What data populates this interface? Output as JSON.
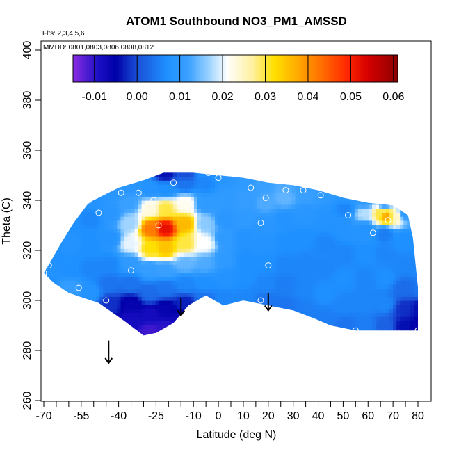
{
  "chart_data": {
    "type": "heatmap",
    "title": "ATOM1 Southbound NO3_PM1_AMSSD",
    "subtitle_flights": "Flts: 2,3,4,5,6",
    "subtitle_dates": "MMDD: 0801,0803,0806,0808,0812",
    "xlabel": "Latitude (deg N)",
    "ylabel": "Theta (C)",
    "xlim": [
      -70,
      80
    ],
    "ylim": [
      260,
      400
    ],
    "x_ticks": [
      -70,
      -55,
      -40,
      -25,
      -10,
      0,
      10,
      20,
      30,
      40,
      50,
      60,
      70,
      80
    ],
    "x_tick_labels": [
      "-70",
      "-55",
      "-40",
      "-25",
      "-10",
      "0",
      "10",
      "20",
      "30",
      "40",
      "50",
      "60",
      "70",
      "80"
    ],
    "x_minor_ticks": [
      -65,
      -60,
      -50,
      -45,
      -35,
      -30,
      -20,
      -15,
      -5,
      5,
      15,
      25,
      35,
      45,
      55,
      65,
      75
    ],
    "y_ticks": [
      260,
      280,
      300,
      320,
      340,
      360,
      380,
      400
    ],
    "y_tick_labels": [
      "260",
      "280",
      "300",
      "320",
      "340",
      "360",
      "380",
      "400"
    ],
    "colorbar": {
      "min": -0.015,
      "max": 0.061,
      "ticks": [
        -0.01,
        0.0,
        0.01,
        0.02,
        0.03,
        0.04,
        0.05,
        0.06
      ],
      "tick_labels": [
        "-0.01",
        "0.00",
        "0.01",
        "0.02",
        "0.03",
        "0.04",
        "0.05",
        "0.06"
      ],
      "colors": [
        "#8a2be2",
        "#1a0fc4",
        "#0000a8",
        "#1a4fd8",
        "#1e90ff",
        "#3aa0ff",
        "#9fd4ff",
        "#ffffff",
        "#fff0a0",
        "#ffe000",
        "#ffb000",
        "#ff7000",
        "#ff2800",
        "#d60000",
        "#8b0000"
      ],
      "color_stops": [
        -0.015,
        -0.009,
        -0.005,
        0.0,
        0.007,
        0.012,
        0.017,
        0.021,
        0.027,
        0.032,
        0.037,
        0.043,
        0.049,
        0.054,
        0.061
      ]
    },
    "domain_outline": [
      [
        -70,
        311
      ],
      [
        -67,
        316
      ],
      [
        -63,
        323
      ],
      [
        -58,
        331
      ],
      [
        -52,
        339
      ],
      [
        -46,
        342
      ],
      [
        -40,
        345
      ],
      [
        -30,
        348
      ],
      [
        -22,
        351
      ],
      [
        -10,
        351
      ],
      [
        0,
        350
      ],
      [
        10,
        349
      ],
      [
        20,
        347
      ],
      [
        30,
        346
      ],
      [
        40,
        344
      ],
      [
        50,
        341
      ],
      [
        60,
        339
      ],
      [
        70,
        338
      ],
      [
        76,
        334
      ],
      [
        78,
        325
      ],
      [
        79,
        315
      ],
      [
        80,
        305
      ],
      [
        80,
        288
      ],
      [
        70,
        288
      ],
      [
        55,
        288
      ],
      [
        45,
        290
      ],
      [
        38,
        293
      ],
      [
        30,
        296
      ],
      [
        20,
        298
      ],
      [
        10,
        300
      ],
      [
        2,
        298
      ],
      [
        -5,
        302
      ],
      [
        -12,
        298
      ],
      [
        -18,
        291
      ],
      [
        -25,
        287
      ],
      [
        -30,
        286
      ],
      [
        -38,
        292
      ],
      [
        -48,
        299
      ],
      [
        -60,
        303
      ],
      [
        -66,
        307
      ],
      [
        -70,
        311
      ]
    ],
    "grid_nodes": [
      {
        "x": -70,
        "y": 304,
        "v": 0.006
      },
      {
        "x": -70,
        "y": 312,
        "v": 0.008
      },
      {
        "x": -68,
        "y": 318,
        "v": 0.007
      },
      {
        "x": -60,
        "y": 304,
        "v": 0.011
      },
      {
        "x": -60,
        "y": 312,
        "v": 0.007
      },
      {
        "x": -60,
        "y": 322,
        "v": 0.008
      },
      {
        "x": -60,
        "y": 332,
        "v": 0.007
      },
      {
        "x": -52,
        "y": 302,
        "v": 0.008
      },
      {
        "x": -52,
        "y": 312,
        "v": 0.006
      },
      {
        "x": -52,
        "y": 322,
        "v": 0.007
      },
      {
        "x": -52,
        "y": 332,
        "v": 0.006
      },
      {
        "x": -52,
        "y": 340,
        "v": 0.008
      },
      {
        "x": -44,
        "y": 298,
        "v": -0.002
      },
      {
        "x": -44,
        "y": 306,
        "v": 0.004
      },
      {
        "x": -44,
        "y": 314,
        "v": 0.006
      },
      {
        "x": -44,
        "y": 324,
        "v": 0.008
      },
      {
        "x": -44,
        "y": 334,
        "v": 0.009
      },
      {
        "x": -44,
        "y": 342,
        "v": 0.009
      },
      {
        "x": -36,
        "y": 292,
        "v": -0.008
      },
      {
        "x": -36,
        "y": 298,
        "v": -0.006
      },
      {
        "x": -36,
        "y": 306,
        "v": 0.004
      },
      {
        "x": -36,
        "y": 314,
        "v": 0.01
      },
      {
        "x": -36,
        "y": 322,
        "v": 0.02
      },
      {
        "x": -36,
        "y": 330,
        "v": 0.017
      },
      {
        "x": -36,
        "y": 338,
        "v": 0.012
      },
      {
        "x": -36,
        "y": 345,
        "v": 0.009
      },
      {
        "x": -28,
        "y": 287,
        "v": -0.011
      },
      {
        "x": -28,
        "y": 294,
        "v": -0.008
      },
      {
        "x": -28,
        "y": 302,
        "v": 0.003
      },
      {
        "x": -28,
        "y": 312,
        "v": 0.011
      },
      {
        "x": -28,
        "y": 320,
        "v": 0.032
      },
      {
        "x": -28,
        "y": 328,
        "v": 0.042
      },
      {
        "x": -28,
        "y": 336,
        "v": 0.023
      },
      {
        "x": -28,
        "y": 344,
        "v": 0.008
      },
      {
        "x": -22,
        "y": 288,
        "v": -0.01
      },
      {
        "x": -22,
        "y": 296,
        "v": -0.006
      },
      {
        "x": -22,
        "y": 304,
        "v": 0.004
      },
      {
        "x": -22,
        "y": 312,
        "v": 0.012
      },
      {
        "x": -22,
        "y": 320,
        "v": 0.035
      },
      {
        "x": -22,
        "y": 328,
        "v": 0.052
      },
      {
        "x": -22,
        "y": 336,
        "v": 0.03
      },
      {
        "x": -22,
        "y": 344,
        "v": 0.007
      },
      {
        "x": -22,
        "y": 350,
        "v": -0.004
      },
      {
        "x": -14,
        "y": 292,
        "v": -0.008
      },
      {
        "x": -14,
        "y": 298,
        "v": -0.003
      },
      {
        "x": -14,
        "y": 306,
        "v": 0.006
      },
      {
        "x": -14,
        "y": 314,
        "v": 0.014
      },
      {
        "x": -14,
        "y": 322,
        "v": 0.03
      },
      {
        "x": -14,
        "y": 330,
        "v": 0.036
      },
      {
        "x": -14,
        "y": 338,
        "v": 0.022
      },
      {
        "x": -14,
        "y": 346,
        "v": 0.004
      },
      {
        "x": -14,
        "y": 350,
        "v": 0.0
      },
      {
        "x": -6,
        "y": 300,
        "v": 0.004
      },
      {
        "x": -6,
        "y": 306,
        "v": 0.007
      },
      {
        "x": -6,
        "y": 314,
        "v": 0.013
      },
      {
        "x": -6,
        "y": 322,
        "v": 0.021
      },
      {
        "x": -6,
        "y": 330,
        "v": 0.016
      },
      {
        "x": -6,
        "y": 338,
        "v": 0.01
      },
      {
        "x": -6,
        "y": 346,
        "v": 0.006
      },
      {
        "x": -6,
        "y": 351,
        "v": 0.007
      },
      {
        "x": 2,
        "y": 300,
        "v": 0.006
      },
      {
        "x": 2,
        "y": 308,
        "v": 0.008
      },
      {
        "x": 2,
        "y": 316,
        "v": 0.01
      },
      {
        "x": 2,
        "y": 324,
        "v": 0.01
      },
      {
        "x": 2,
        "y": 332,
        "v": 0.009
      },
      {
        "x": 2,
        "y": 340,
        "v": 0.01
      },
      {
        "x": 2,
        "y": 348,
        "v": 0.009
      },
      {
        "x": 10,
        "y": 300,
        "v": 0.006
      },
      {
        "x": 10,
        "y": 308,
        "v": 0.007
      },
      {
        "x": 10,
        "y": 316,
        "v": 0.007
      },
      {
        "x": 10,
        "y": 324,
        "v": 0.008
      },
      {
        "x": 10,
        "y": 332,
        "v": 0.01
      },
      {
        "x": 10,
        "y": 340,
        "v": 0.011
      },
      {
        "x": 10,
        "y": 347,
        "v": 0.01
      },
      {
        "x": 18,
        "y": 299,
        "v": 0.004
      },
      {
        "x": 18,
        "y": 306,
        "v": 0.006
      },
      {
        "x": 18,
        "y": 314,
        "v": 0.007
      },
      {
        "x": 18,
        "y": 322,
        "v": 0.008
      },
      {
        "x": 18,
        "y": 330,
        "v": 0.009
      },
      {
        "x": 18,
        "y": 338,
        "v": 0.013
      },
      {
        "x": 18,
        "y": 346,
        "v": 0.012
      },
      {
        "x": 26,
        "y": 297,
        "v": 0.004
      },
      {
        "x": 26,
        "y": 306,
        "v": 0.005
      },
      {
        "x": 26,
        "y": 314,
        "v": 0.006
      },
      {
        "x": 26,
        "y": 322,
        "v": 0.007
      },
      {
        "x": 26,
        "y": 332,
        "v": 0.008
      },
      {
        "x": 26,
        "y": 340,
        "v": 0.014
      },
      {
        "x": 26,
        "y": 346,
        "v": 0.013
      },
      {
        "x": 34,
        "y": 295,
        "v": 0.005
      },
      {
        "x": 34,
        "y": 304,
        "v": 0.006
      },
      {
        "x": 34,
        "y": 314,
        "v": 0.006
      },
      {
        "x": 34,
        "y": 324,
        "v": 0.007
      },
      {
        "x": 34,
        "y": 334,
        "v": 0.009
      },
      {
        "x": 34,
        "y": 342,
        "v": 0.012
      },
      {
        "x": 34,
        "y": 345,
        "v": 0.011
      },
      {
        "x": 42,
        "y": 292,
        "v": 0.005
      },
      {
        "x": 42,
        "y": 302,
        "v": 0.007
      },
      {
        "x": 42,
        "y": 312,
        "v": 0.006
      },
      {
        "x": 42,
        "y": 322,
        "v": 0.006
      },
      {
        "x": 42,
        "y": 332,
        "v": 0.008
      },
      {
        "x": 42,
        "y": 342,
        "v": 0.01
      },
      {
        "x": 50,
        "y": 289,
        "v": 0.004
      },
      {
        "x": 50,
        "y": 298,
        "v": 0.006
      },
      {
        "x": 50,
        "y": 308,
        "v": 0.007
      },
      {
        "x": 50,
        "y": 318,
        "v": 0.006
      },
      {
        "x": 50,
        "y": 328,
        "v": 0.008
      },
      {
        "x": 50,
        "y": 336,
        "v": 0.006
      },
      {
        "x": 50,
        "y": 341,
        "v": 0.009
      },
      {
        "x": 58,
        "y": 289,
        "v": 0.005
      },
      {
        "x": 58,
        "y": 298,
        "v": 0.006
      },
      {
        "x": 58,
        "y": 308,
        "v": 0.006
      },
      {
        "x": 58,
        "y": 318,
        "v": 0.007
      },
      {
        "x": 58,
        "y": 328,
        "v": 0.008
      },
      {
        "x": 58,
        "y": 334,
        "v": 0.018
      },
      {
        "x": 58,
        "y": 339,
        "v": 0.01
      },
      {
        "x": 64,
        "y": 334,
        "v": 0.03
      },
      {
        "x": 67,
        "y": 333,
        "v": 0.038
      },
      {
        "x": 70,
        "y": 333,
        "v": 0.025
      },
      {
        "x": 66,
        "y": 289,
        "v": 0.002
      },
      {
        "x": 66,
        "y": 298,
        "v": 0.006
      },
      {
        "x": 66,
        "y": 308,
        "v": 0.007
      },
      {
        "x": 66,
        "y": 318,
        "v": 0.006
      },
      {
        "x": 66,
        "y": 326,
        "v": 0.005
      },
      {
        "x": 66,
        "y": 338,
        "v": 0.012
      },
      {
        "x": 74,
        "y": 289,
        "v": -0.004
      },
      {
        "x": 74,
        "y": 296,
        "v": -0.002
      },
      {
        "x": 74,
        "y": 304,
        "v": 0.003
      },
      {
        "x": 74,
        "y": 314,
        "v": 0.006
      },
      {
        "x": 74,
        "y": 324,
        "v": 0.007
      },
      {
        "x": 74,
        "y": 334,
        "v": 0.01
      },
      {
        "x": 80,
        "y": 289,
        "v": -0.006
      },
      {
        "x": 80,
        "y": 296,
        "v": -0.004
      },
      {
        "x": 80,
        "y": 304,
        "v": 0.004
      },
      {
        "x": 80,
        "y": 312,
        "v": 0.006
      }
    ],
    "sample_points": [
      {
        "x": -70,
        "y": 311
      },
      {
        "x": -68,
        "y": 314
      },
      {
        "x": -56,
        "y": 305
      },
      {
        "x": -52,
        "y": 340
      },
      {
        "x": -48,
        "y": 335
      },
      {
        "x": -45,
        "y": 300
      },
      {
        "x": -39,
        "y": 343
      },
      {
        "x": -35,
        "y": 312
      },
      {
        "x": -32,
        "y": 343
      },
      {
        "x": -26,
        "y": 340
      },
      {
        "x": -24,
        "y": 330
      },
      {
        "x": -18,
        "y": 347
      },
      {
        "x": -4,
        "y": 351
      },
      {
        "x": 0,
        "y": 349
      },
      {
        "x": 13,
        "y": 345
      },
      {
        "x": 17,
        "y": 331
      },
      {
        "x": 19,
        "y": 341
      },
      {
        "x": 17,
        "y": 300
      },
      {
        "x": 20,
        "y": 314
      },
      {
        "x": 27,
        "y": 344
      },
      {
        "x": 34,
        "y": 344
      },
      {
        "x": 41,
        "y": 342
      },
      {
        "x": 52,
        "y": 334
      },
      {
        "x": 55,
        "y": 288
      },
      {
        "x": 62,
        "y": 327
      },
      {
        "x": 68,
        "y": 332
      },
      {
        "x": 80,
        "y": 288
      }
    ],
    "arrows": [
      {
        "x": -44,
        "y_start": 284,
        "y_end": 275
      },
      {
        "x": -15,
        "y_start": 301,
        "y_end": 294
      },
      {
        "x": 20,
        "y_start": 303,
        "y_end": 296
      }
    ]
  }
}
